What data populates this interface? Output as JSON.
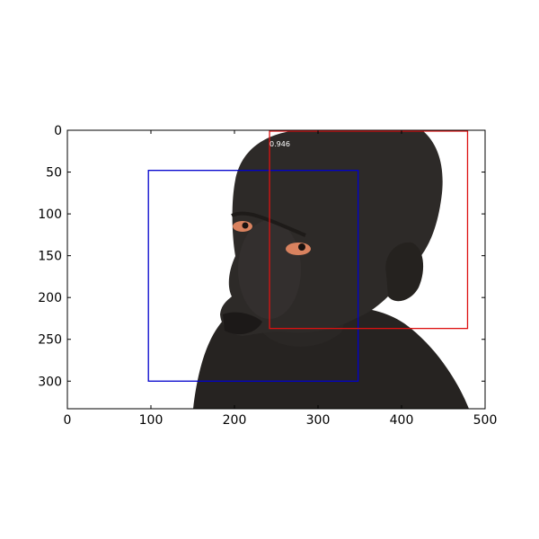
{
  "image": {
    "width": 500,
    "height": 333,
    "subject": "portrait-photo",
    "background_color": "#ffffff",
    "skin_color": "#2b2826"
  },
  "axes": {
    "xlim": [
      0,
      500
    ],
    "ylim": [
      333,
      0
    ],
    "x_ticks": [
      0,
      100,
      200,
      300,
      400,
      500
    ],
    "y_ticks": [
      0,
      50,
      100,
      150,
      200,
      250,
      300
    ],
    "x_tick_labels": [
      "0",
      "100",
      "200",
      "300",
      "400",
      "500"
    ],
    "y_tick_labels": [
      "0",
      "50",
      "100",
      "150",
      "200",
      "250",
      "300"
    ]
  },
  "boxes": [
    {
      "name": "detection-box-blue",
      "color": "#0000cc",
      "x1": 97,
      "y1": 48,
      "x2": 348,
      "y2": 300,
      "score_label": ""
    },
    {
      "name": "detection-box-red",
      "color": "#dd1111",
      "x1": 242,
      "y1": 1,
      "x2": 479,
      "y2": 237,
      "score_label": "0.946"
    }
  ]
}
